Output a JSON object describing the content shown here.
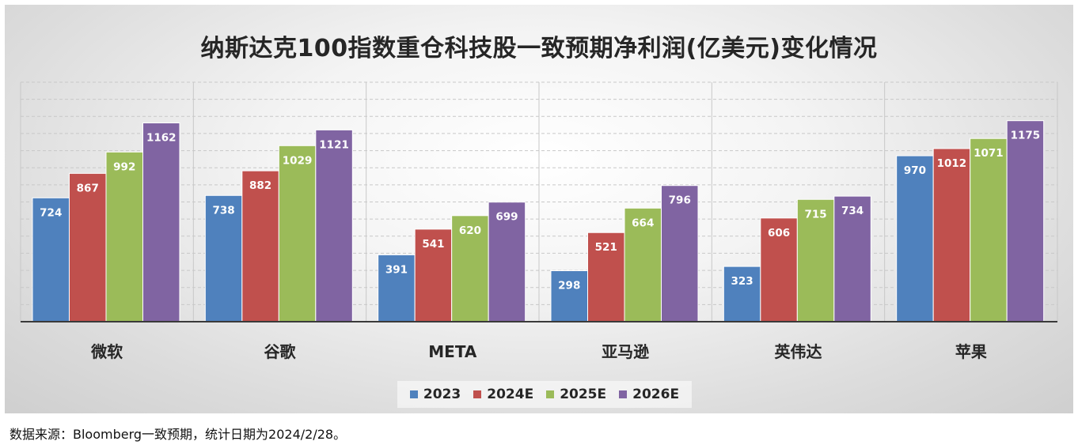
{
  "chart_data": {
    "type": "bar",
    "title": "纳斯达克100指数重仓科技股一致预期净利润(亿美元)变化情况",
    "categories": [
      "微软",
      "谷歌",
      "META",
      "亚马逊",
      "英伟达",
      "苹果"
    ],
    "series": [
      {
        "name": "2023",
        "color": "#4f81bd",
        "values": [
          724,
          738,
          391,
          298,
          323,
          970
        ]
      },
      {
        "name": "2024E",
        "color": "#c0504d",
        "values": [
          867,
          882,
          541,
          521,
          606,
          1012
        ]
      },
      {
        "name": "2025E",
        "color": "#9bbb59",
        "values": [
          992,
          1029,
          620,
          664,
          715,
          1071
        ]
      },
      {
        "name": "2026E",
        "color": "#8064a2",
        "values": [
          1162,
          1121,
          699,
          796,
          734,
          1175
        ]
      }
    ],
    "ylim": [
      0,
      1400
    ],
    "grid": true,
    "legend_position": "bottom"
  },
  "source_note": "数据来源：Bloomberg一致预期，统计日期为2024/2/28。"
}
